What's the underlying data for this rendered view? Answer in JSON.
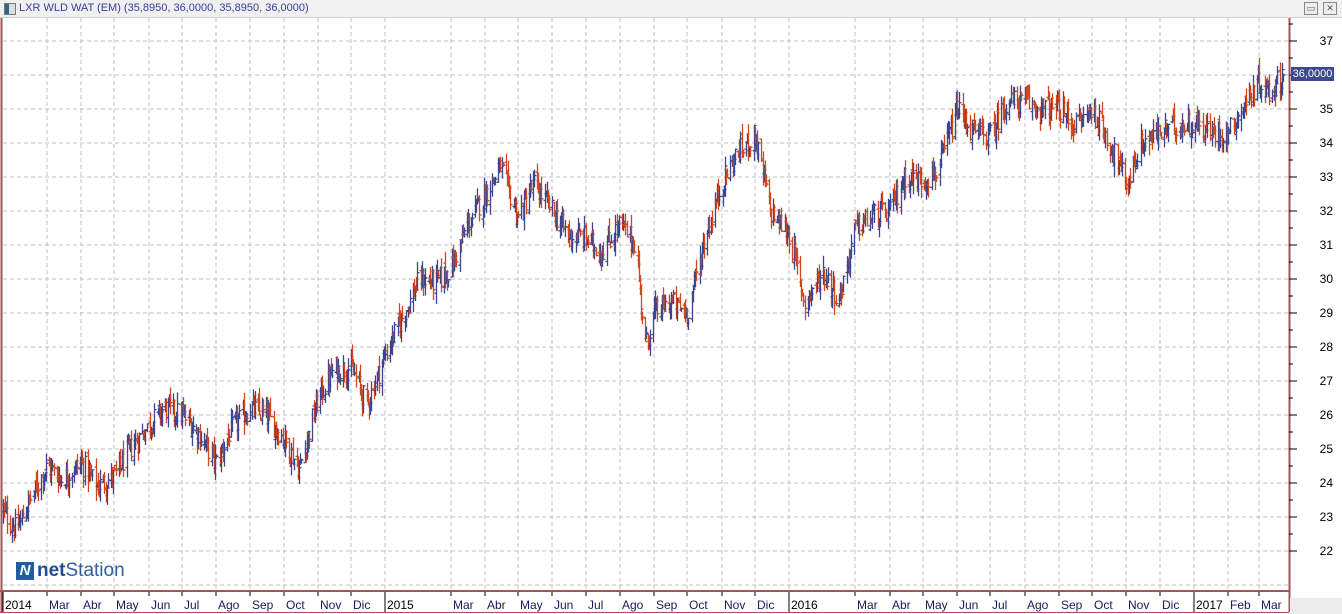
{
  "window": {
    "title": "LXR WLD WAT (EM) (35,8950, 36,0000, 35,8950, 36,0000)",
    "restore_label": "▭",
    "close_label": "✕"
  },
  "logo": {
    "icon": "N",
    "text_bold": "net",
    "text_regular": "Station"
  },
  "last_price_label": "36,0000",
  "colors": {
    "up": "#3b4590",
    "down": "#d2461c",
    "grid": "#c0c0c0",
    "frame": "#a05656",
    "price_tag": "#3b4a8e"
  },
  "chart_data": {
    "type": "ohlc",
    "title": "LXR WLD WAT (EM)",
    "last_ohlc": {
      "open": 35.895,
      "high": 36.0,
      "low": 35.895,
      "close": 36.0
    },
    "ylim": [
      20.9,
      37.7
    ],
    "y_ticks": [
      22,
      23,
      24,
      25,
      26,
      27,
      28,
      29,
      30,
      31,
      32,
      33,
      34,
      35,
      36,
      37
    ],
    "grid": true,
    "x_ticks": [
      {
        "date": "2014-01-20",
        "label": "2014",
        "year": true
      },
      {
        "date": "2014-03-01",
        "label": "Mar"
      },
      {
        "date": "2014-04-01",
        "label": "Abr"
      },
      {
        "date": "2014-05-01",
        "label": "May"
      },
      {
        "date": "2014-06-01",
        "label": "Jun"
      },
      {
        "date": "2014-07-01",
        "label": "Jul"
      },
      {
        "date": "2014-08-01",
        "label": "Ago"
      },
      {
        "date": "2014-09-01",
        "label": "Sep"
      },
      {
        "date": "2014-10-01",
        "label": "Oct"
      },
      {
        "date": "2014-11-01",
        "label": "Nov"
      },
      {
        "date": "2014-12-01",
        "label": "Dic"
      },
      {
        "date": "2015-01-01",
        "label": "2015",
        "year": true
      },
      {
        "date": "2015-03-01",
        "label": "Mar"
      },
      {
        "date": "2015-04-01",
        "label": "Abr"
      },
      {
        "date": "2015-05-01",
        "label": "May"
      },
      {
        "date": "2015-06-01",
        "label": "Jun"
      },
      {
        "date": "2015-07-01",
        "label": "Jul"
      },
      {
        "date": "2015-08-01",
        "label": "Ago"
      },
      {
        "date": "2015-09-01",
        "label": "Sep"
      },
      {
        "date": "2015-10-01",
        "label": "Oct"
      },
      {
        "date": "2015-11-01",
        "label": "Nov"
      },
      {
        "date": "2015-12-01",
        "label": "Dic"
      },
      {
        "date": "2016-01-01",
        "label": "2016",
        "year": true
      },
      {
        "date": "2016-03-01",
        "label": "Mar"
      },
      {
        "date": "2016-04-01",
        "label": "Abr"
      },
      {
        "date": "2016-05-01",
        "label": "May"
      },
      {
        "date": "2016-06-01",
        "label": "Jun"
      },
      {
        "date": "2016-07-01",
        "label": "Jul"
      },
      {
        "date": "2016-08-01",
        "label": "Ago"
      },
      {
        "date": "2016-09-01",
        "label": "Sep"
      },
      {
        "date": "2016-10-01",
        "label": "Oct"
      },
      {
        "date": "2016-11-01",
        "label": "Nov"
      },
      {
        "date": "2016-12-01",
        "label": "Dic"
      },
      {
        "date": "2017-01-01",
        "label": "2017",
        "year": true
      },
      {
        "date": "2017-02-01",
        "label": "Feb"
      },
      {
        "date": "2017-03-01",
        "label": "Mar"
      }
    ],
    "close_path": [
      [
        "2014-01-20",
        23.2
      ],
      [
        "2014-02-01",
        22.6
      ],
      [
        "2014-02-15",
        23.6
      ],
      [
        "2014-03-01",
        24.5
      ],
      [
        "2014-03-15",
        24.1
      ],
      [
        "2014-04-01",
        24.6
      ],
      [
        "2014-04-15",
        23.9
      ],
      [
        "2014-05-01",
        24.2
      ],
      [
        "2014-05-15",
        25.0
      ],
      [
        "2014-06-01",
        25.7
      ],
      [
        "2014-06-15",
        26.2
      ],
      [
        "2014-07-01",
        26.0
      ],
      [
        "2014-07-15",
        25.5
      ],
      [
        "2014-08-01",
        24.6
      ],
      [
        "2014-08-15",
        25.6
      ],
      [
        "2014-09-01",
        26.2
      ],
      [
        "2014-09-15",
        26.0
      ],
      [
        "2014-10-01",
        25.3
      ],
      [
        "2014-10-15",
        24.4
      ],
      [
        "2014-11-01",
        26.5
      ],
      [
        "2014-11-15",
        27.3
      ],
      [
        "2014-12-01",
        27.4
      ],
      [
        "2014-12-15",
        26.3
      ],
      [
        "2015-01-01",
        27.8
      ],
      [
        "2015-01-15",
        28.8
      ],
      [
        "2015-02-01",
        30.0
      ],
      [
        "2015-02-15",
        29.9
      ],
      [
        "2015-03-01",
        30.3
      ],
      [
        "2015-03-15",
        31.5
      ],
      [
        "2015-04-01",
        32.5
      ],
      [
        "2015-04-15",
        33.3
      ],
      [
        "2015-05-01",
        31.8
      ],
      [
        "2015-05-15",
        32.8
      ],
      [
        "2015-06-01",
        32.0
      ],
      [
        "2015-06-15",
        31.3
      ],
      [
        "2015-07-01",
        31.2
      ],
      [
        "2015-07-15",
        30.8
      ],
      [
        "2015-08-01",
        31.6
      ],
      [
        "2015-08-15",
        31.0
      ],
      [
        "2015-08-24",
        28.0
      ],
      [
        "2015-09-01",
        29.0
      ],
      [
        "2015-09-15",
        29.3
      ],
      [
        "2015-10-01",
        29.0
      ],
      [
        "2015-10-15",
        31.0
      ],
      [
        "2015-11-01",
        32.8
      ],
      [
        "2015-11-15",
        33.7
      ],
      [
        "2015-12-01",
        34.2
      ],
      [
        "2015-12-15",
        32.0
      ],
      [
        "2016-01-01",
        31.3
      ],
      [
        "2016-01-15",
        29.3
      ],
      [
        "2016-02-01",
        30.2
      ],
      [
        "2016-02-15",
        29.4
      ],
      [
        "2016-03-01",
        31.5
      ],
      [
        "2016-03-15",
        31.8
      ],
      [
        "2016-04-01",
        32.0
      ],
      [
        "2016-04-15",
        33.0
      ],
      [
        "2016-05-01",
        32.9
      ],
      [
        "2016-05-15",
        33.2
      ],
      [
        "2016-06-01",
        35.0
      ],
      [
        "2016-06-15",
        34.3
      ],
      [
        "2016-07-01",
        34.2
      ],
      [
        "2016-07-15",
        35.2
      ],
      [
        "2016-08-01",
        35.2
      ],
      [
        "2016-08-15",
        35.0
      ],
      [
        "2016-09-01",
        35.0
      ],
      [
        "2016-09-15",
        34.5
      ],
      [
        "2016-10-01",
        35.0
      ],
      [
        "2016-10-15",
        34.1
      ],
      [
        "2016-11-01",
        32.8
      ],
      [
        "2016-11-15",
        34.0
      ],
      [
        "2016-12-01",
        34.3
      ],
      [
        "2016-12-15",
        34.5
      ],
      [
        "2017-01-01",
        34.6
      ],
      [
        "2017-01-15",
        34.3
      ],
      [
        "2017-02-01",
        34.3
      ],
      [
        "2017-02-15",
        35.1
      ],
      [
        "2017-03-01",
        35.8
      ],
      [
        "2017-03-10",
        35.5
      ],
      [
        "2017-03-23",
        36.0
      ]
    ]
  }
}
